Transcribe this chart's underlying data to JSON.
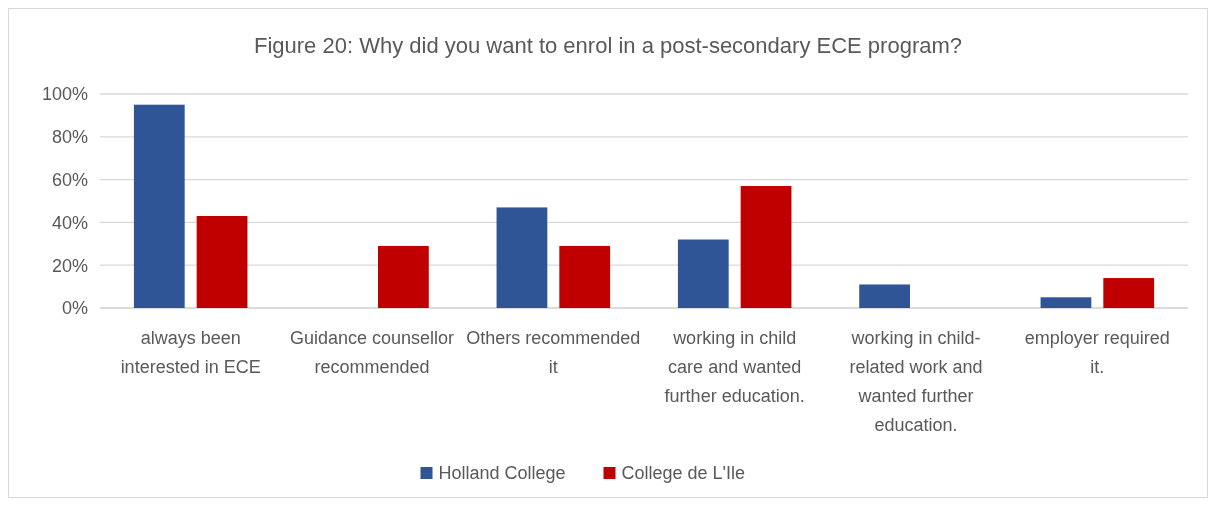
{
  "chart_data": {
    "type": "bar",
    "title": "Figure 20: Why did you want to enrol in a post-secondary ECE program?",
    "categories": [
      "always been interested in ECE",
      "Guidance counsellor recommended",
      "Others recommended it",
      "working in child care and wanted further education.",
      "working in child-related work and wanted further education.",
      "employer required it."
    ],
    "series": [
      {
        "name": "Holland College",
        "color": "#2f5597",
        "values": [
          95,
          0,
          47,
          32,
          11,
          5
        ]
      },
      {
        "name": "College de L'Ile",
        "color": "#c00000",
        "values": [
          43,
          29,
          29,
          57,
          0,
          14
        ]
      }
    ],
    "ylim": [
      0,
      100
    ],
    "yticks": [
      {
        "value": 0,
        "label": "0%"
      },
      {
        "value": 20,
        "label": "20%"
      },
      {
        "value": 40,
        "label": "40%"
      },
      {
        "value": 60,
        "label": "60%"
      },
      {
        "value": 80,
        "label": "80%"
      },
      {
        "value": 100,
        "label": "100%"
      }
    ],
    "grid": "y",
    "legend": "bottom"
  }
}
